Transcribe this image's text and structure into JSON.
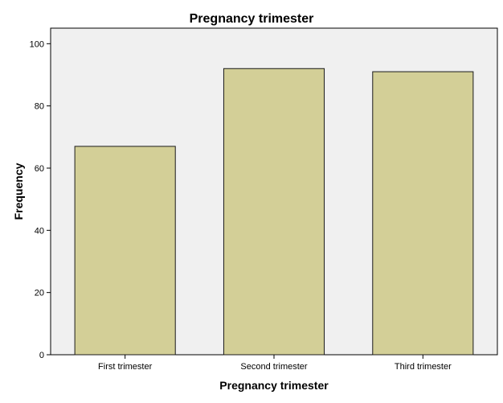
{
  "chart_data": {
    "type": "bar",
    "title": "Pregnancy trimester",
    "xlabel": "Pregnancy trimester",
    "ylabel": "Frequency",
    "categories": [
      "First trimester",
      "Second trimester",
      "Third trimester"
    ],
    "values": [
      67,
      92,
      91
    ],
    "ylim": [
      0,
      105
    ],
    "yticks": [
      0,
      20,
      40,
      60,
      80,
      100
    ],
    "grid": false,
    "legend": "none",
    "colors": {
      "bar_fill": "#d3cf97",
      "bar_stroke": "#1a1a1a",
      "plot_background": "#f0f0f0",
      "axis": "#000000"
    }
  }
}
